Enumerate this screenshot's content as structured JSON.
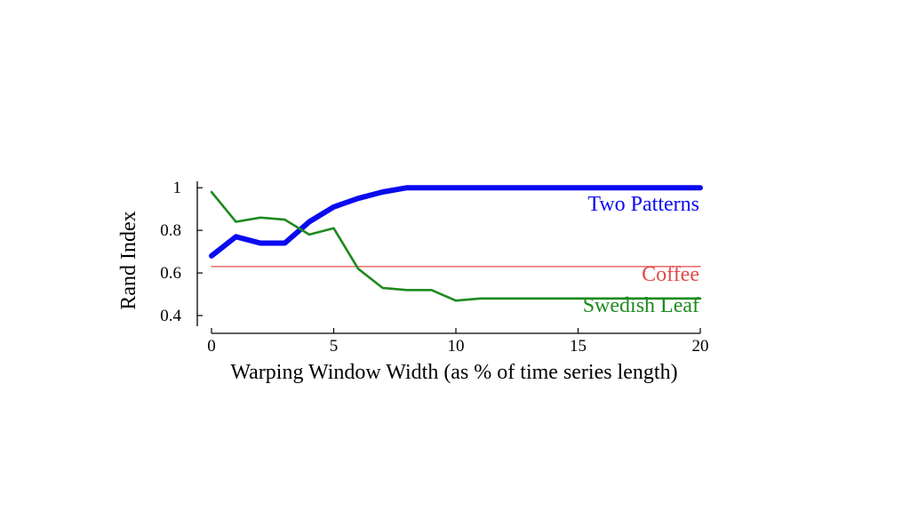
{
  "chart_data": {
    "type": "line",
    "title": "",
    "xlabel": "Warping Window Width (as % of time series length)",
    "ylabel": "Rand Index",
    "xlim": [
      0,
      20
    ],
    "ylim": [
      0.35,
      1.03
    ],
    "grid": false,
    "x_ticks": [
      {
        "value": 0,
        "label": "0"
      },
      {
        "value": 5,
        "label": "5"
      },
      {
        "value": 10,
        "label": "10"
      },
      {
        "value": 15,
        "label": "15"
      },
      {
        "value": 20,
        "label": "20"
      }
    ],
    "y_ticks": [
      {
        "value": 0.4,
        "label": "0.4"
      },
      {
        "value": 0.6,
        "label": "0.6"
      },
      {
        "value": 0.8,
        "label": "0.8"
      },
      {
        "value": 1.0,
        "label": "1"
      }
    ],
    "series": [
      {
        "name": "Two Patterns",
        "color": "#0a0af0",
        "style": "thick",
        "x": [
          0,
          1,
          2,
          3,
          4,
          5,
          6,
          7,
          8,
          9,
          10,
          11,
          12,
          13,
          14,
          15,
          16,
          17,
          18,
          19,
          20
        ],
        "y": [
          0.68,
          0.77,
          0.74,
          0.74,
          0.84,
          0.91,
          0.95,
          0.98,
          1.0,
          1.0,
          1.0,
          1.0,
          1.0,
          1.0,
          1.0,
          1.0,
          1.0,
          1.0,
          1.0,
          1.0,
          1.0
        ]
      },
      {
        "name": "Coffee",
        "color": "#e24a4a",
        "style": "thin",
        "x": [
          0,
          20
        ],
        "y": [
          0.63,
          0.63
        ]
      },
      {
        "name": "Swedish Leaf",
        "color": "#1e8a1e",
        "style": "medium",
        "x": [
          0,
          1,
          2,
          3,
          4,
          5,
          6,
          7,
          8,
          9,
          10,
          11,
          12,
          13,
          14,
          15,
          16,
          17,
          18,
          19,
          20
        ],
        "y": [
          0.98,
          0.84,
          0.86,
          0.85,
          0.78,
          0.81,
          0.62,
          0.53,
          0.52,
          0.52,
          0.47,
          0.48,
          0.48,
          0.48,
          0.48,
          0.48,
          0.48,
          0.48,
          0.48,
          0.48,
          0.48
        ]
      }
    ]
  }
}
